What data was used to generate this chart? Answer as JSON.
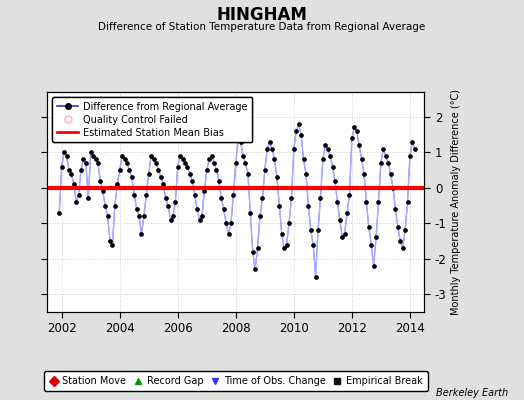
{
  "title": "HINGHAM",
  "subtitle": "Difference of Station Temperature Data from Regional Average",
  "ylabel_right": "Monthly Temperature Anomaly Difference (°C)",
  "bias": 0.0,
  "xlim": [
    2001.5,
    2014.5
  ],
  "ylim": [
    -3.5,
    2.7
  ],
  "yticks": [
    -3,
    -2,
    -1,
    0,
    1,
    2
  ],
  "xticks": [
    2002,
    2004,
    2006,
    2008,
    2010,
    2012,
    2014
  ],
  "line_color": "#5555ff",
  "line_color_light": "#aaaaff",
  "marker_color": "#000000",
  "bias_color": "#ff0000",
  "background_color": "#e0e0e0",
  "plot_bg_color": "#ffffff",
  "grid_color": "#cccccc",
  "watermark": "Berkeley Earth",
  "legend1_entries": [
    {
      "label": "Difference from Regional Average",
      "lc": "#3333cc",
      "mk": "o",
      "mkfc": "#000000"
    },
    {
      "label": "Quality Control Failed",
      "lc": "#ffaacc",
      "mk": "o",
      "mkfc": "none"
    },
    {
      "label": "Estimated Station Mean Bias",
      "lc": "#ff0000",
      "mk": "none"
    }
  ],
  "legend2_entries": [
    {
      "label": "Station Move",
      "color": "#dd0000",
      "marker": "D"
    },
    {
      "label": "Record Gap",
      "color": "#009900",
      "marker": "^"
    },
    {
      "label": "Time of Obs. Change",
      "color": "#3333ff",
      "marker": "v"
    },
    {
      "label": "Empirical Break",
      "color": "#111111",
      "marker": "s"
    }
  ],
  "time": [
    2001.917,
    2002.0,
    2002.083,
    2002.167,
    2002.25,
    2002.333,
    2002.417,
    2002.5,
    2002.583,
    2002.667,
    2002.75,
    2002.833,
    2002.917,
    2003.0,
    2003.083,
    2003.167,
    2003.25,
    2003.333,
    2003.417,
    2003.5,
    2003.583,
    2003.667,
    2003.75,
    2003.833,
    2003.917,
    2004.0,
    2004.083,
    2004.167,
    2004.25,
    2004.333,
    2004.417,
    2004.5,
    2004.583,
    2004.667,
    2004.75,
    2004.833,
    2004.917,
    2005.0,
    2005.083,
    2005.167,
    2005.25,
    2005.333,
    2005.417,
    2005.5,
    2005.583,
    2005.667,
    2005.75,
    2005.833,
    2005.917,
    2006.0,
    2006.083,
    2006.167,
    2006.25,
    2006.333,
    2006.417,
    2006.5,
    2006.583,
    2006.667,
    2006.75,
    2006.833,
    2006.917,
    2007.0,
    2007.083,
    2007.167,
    2007.25,
    2007.333,
    2007.417,
    2007.5,
    2007.583,
    2007.667,
    2007.75,
    2007.833,
    2007.917,
    2008.0,
    2008.083,
    2008.167,
    2008.25,
    2008.333,
    2008.417,
    2008.5,
    2008.583,
    2008.667,
    2008.75,
    2008.833,
    2008.917,
    2009.0,
    2009.083,
    2009.167,
    2009.25,
    2009.333,
    2009.417,
    2009.5,
    2009.583,
    2009.667,
    2009.75,
    2009.833,
    2009.917,
    2010.0,
    2010.083,
    2010.167,
    2010.25,
    2010.333,
    2010.417,
    2010.5,
    2010.583,
    2010.667,
    2010.75,
    2010.833,
    2010.917,
    2011.0,
    2011.083,
    2011.167,
    2011.25,
    2011.333,
    2011.417,
    2011.5,
    2011.583,
    2011.667,
    2011.75,
    2011.833,
    2011.917,
    2012.0,
    2012.083,
    2012.167,
    2012.25,
    2012.333,
    2012.417,
    2012.5,
    2012.583,
    2012.667,
    2012.75,
    2012.833,
    2012.917,
    2013.0,
    2013.083,
    2013.167,
    2013.25,
    2013.333,
    2013.417,
    2013.5,
    2013.583,
    2013.667,
    2013.75,
    2013.833,
    2013.917,
    2014.0,
    2014.083,
    2014.167
  ],
  "values": [
    -0.7,
    0.6,
    1.0,
    0.9,
    0.5,
    0.4,
    0.1,
    -0.4,
    -0.2,
    0.5,
    0.8,
    0.7,
    -0.3,
    1.0,
    0.9,
    0.8,
    0.7,
    0.2,
    -0.1,
    -0.5,
    -0.8,
    -1.5,
    -1.6,
    -0.5,
    0.1,
    0.5,
    0.9,
    0.8,
    0.7,
    0.5,
    0.3,
    -0.2,
    -0.6,
    -0.8,
    -1.3,
    -0.8,
    -0.2,
    0.4,
    0.9,
    0.8,
    0.7,
    0.5,
    0.3,
    0.1,
    -0.3,
    -0.5,
    -0.9,
    -0.8,
    -0.4,
    0.6,
    0.9,
    0.8,
    0.7,
    0.6,
    0.4,
    0.2,
    -0.2,
    -0.6,
    -0.9,
    -0.8,
    -0.1,
    0.5,
    0.8,
    0.9,
    0.7,
    0.5,
    0.2,
    -0.3,
    -0.6,
    -1.0,
    -1.3,
    -1.0,
    -0.2,
    0.7,
    1.4,
    1.3,
    0.9,
    0.7,
    0.4,
    -0.7,
    -1.8,
    -2.3,
    -1.7,
    -0.8,
    -0.3,
    0.5,
    1.1,
    1.3,
    1.1,
    0.8,
    0.3,
    -0.5,
    -1.3,
    -1.7,
    -1.6,
    -1.0,
    -0.3,
    1.1,
    1.6,
    1.8,
    1.5,
    0.8,
    0.4,
    -0.5,
    -1.2,
    -1.6,
    -2.5,
    -1.2,
    -0.3,
    0.8,
    1.2,
    1.1,
    0.9,
    0.6,
    0.2,
    -0.4,
    -0.9,
    -1.4,
    -1.3,
    -0.7,
    -0.2,
    1.4,
    1.7,
    1.6,
    1.2,
    0.8,
    0.4,
    -0.4,
    -1.1,
    -1.6,
    -2.2,
    -1.4,
    -0.4,
    0.7,
    1.1,
    0.9,
    0.7,
    0.4,
    0.0,
    -0.6,
    -1.1,
    -1.5,
    -1.7,
    -1.2,
    -0.4,
    0.9,
    1.3,
    1.1
  ]
}
